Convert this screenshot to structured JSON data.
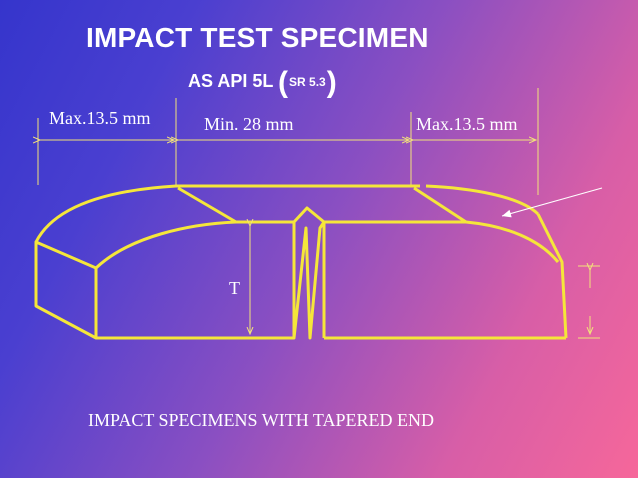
{
  "slide": {
    "title": "IMPACT TEST SPECIMEN",
    "subtitle": {
      "main": "AS API 5L",
      "paren_open": "(",
      "reference": "SR 5.3",
      "paren_close": ")"
    },
    "dimensions": {
      "left": "Max.13.5 mm",
      "middle": "Min. 28 mm",
      "right": "Max.13.5 mm"
    },
    "thickness_label": "T",
    "caption": "IMPACT SPECIMENS WITH TAPERED END"
  },
  "colors": {
    "outline": "#f5e63a",
    "dimension_lines": "#f2e27a",
    "text": "#ffffff"
  }
}
